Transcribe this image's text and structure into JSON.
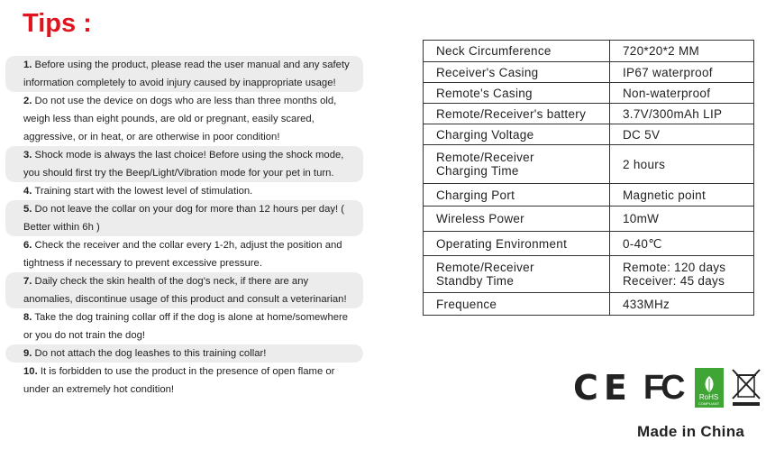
{
  "title": "Tips :",
  "tips": [
    {
      "num": "1.",
      "text": " Before using the product, please read the user manual and any safety information completely to avoid injury caused by inappropriate usage!"
    },
    {
      "num": "2.",
      "text": " Do not use the device on dogs who are less than three months old, weigh less than eight pounds, are old or pregnant, easily scared, aggressive, or in heat, or are otherwise in poor condition!"
    },
    {
      "num": "3.",
      "text": " Shock mode is always the last choice! Before using the shock mode, you should first try the Beep/Light/Vibration mode for your pet in turn."
    },
    {
      "num": "4.",
      "text": " Training start with the lowest level of stimulation."
    },
    {
      "num": "5.",
      "text": " Do not leave the collar on your dog for more than 12 hours per day! ( Better within 6h )"
    },
    {
      "num": "6.",
      "text": " Check the receiver and the collar every 1-2h, adjust the position and tightness if necessary to prevent excessive pressure."
    },
    {
      "num": "7.",
      "text": " Daily check the skin health of the dog's neck, if there are any anomalies, discontinue usage of this product and consult a veterinarian!"
    },
    {
      "num": "8.",
      "text": " Take the dog training collar off if the dog is alone at home/somewhere or you do not train the dog!"
    },
    {
      "num": "9.",
      "text": " Do not attach the dog leashes to this training collar!"
    },
    {
      "num": "10.",
      "text": " It is forbidden to use the product in the presence of open flame or under an extremely hot condition!"
    }
  ],
  "specs": [
    {
      "label": "Neck Circumference",
      "value": "720*20*2 MM"
    },
    {
      "label": "Receiver's Casing",
      "value": "IP67 waterproof"
    },
    {
      "label": "Remote's Casing",
      "value": "Non-waterproof"
    },
    {
      "label": "Remote/Receiver's battery",
      "value": "3.7V/300mAh LIP"
    },
    {
      "label": "Charging Voltage",
      "value": "DC 5V"
    },
    {
      "label": "Remote/Receiver Charging Time",
      "value": "2 hours"
    },
    {
      "label": "Charging Port",
      "value": "Magnetic point"
    },
    {
      "label": "Wireless Power",
      "value": "10mW"
    },
    {
      "label": "Operating Environment",
      "value": "0-40℃"
    },
    {
      "label": "Remote/Receiver Standby Time",
      "value": "Remote: 120 days Receiver: 45 days"
    },
    {
      "label": "Frequence",
      "value": "433MHz"
    }
  ],
  "logos": {
    "ce": "CE",
    "fcc": "FC",
    "rohs": "RoHS",
    "rohs_sub": "COMPLIANT"
  },
  "made_in": "Made in China",
  "colors": {
    "title": "#e0141e",
    "shade": "#ececec",
    "rohs": "#3fa535"
  }
}
